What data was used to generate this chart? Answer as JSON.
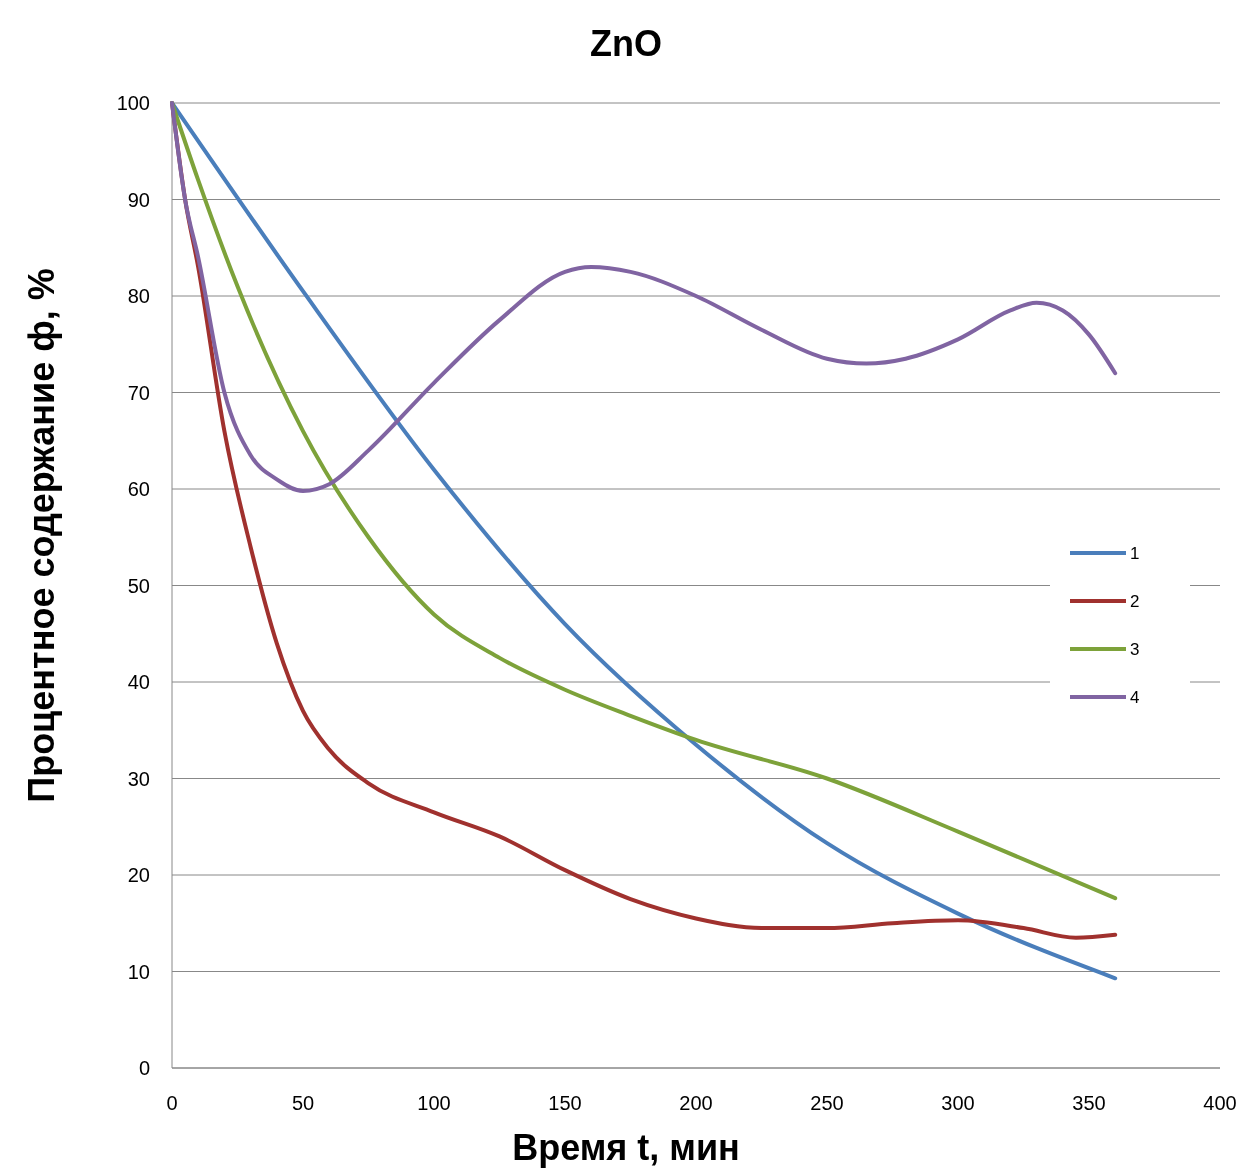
{
  "chart_data": {
    "type": "line",
    "title": "ZnO",
    "xlabel": "Время t, мин",
    "ylabel": "Процентное содержание ф, %",
    "xlim": [
      0,
      400
    ],
    "xticks": [
      0,
      50,
      100,
      150,
      200,
      250,
      300,
      350,
      400
    ],
    "ylim": [
      0,
      100
    ],
    "yticks": [
      0,
      10,
      20,
      30,
      40,
      50,
      60,
      70,
      80,
      90,
      100
    ],
    "grid": "y",
    "legend": "right",
    "marker": "none",
    "line_style": "solid",
    "series": [
      {
        "name": "1",
        "color": "#4a7ebb",
        "x": [
          0,
          50,
          100,
          150,
          200,
          250,
          300,
          360
        ],
        "values": [
          100,
          80.5,
          62,
          46,
          33.5,
          23.3,
          16,
          9.3
        ]
      },
      {
        "name": "2",
        "color": "#a0312e",
        "x": [
          0,
          5,
          10,
          20,
          30,
          40,
          50,
          60,
          75,
          100,
          125,
          150,
          175,
          200,
          225,
          250,
          275,
          300,
          325,
          345,
          360
        ],
        "values": [
          100,
          90,
          83,
          66,
          54,
          44,
          37,
          33,
          29.5,
          26.5,
          24,
          20.5,
          17.5,
          15.5,
          14.5,
          14.5,
          15,
          15.3,
          14.5,
          13.5,
          13.8
        ]
      },
      {
        "name": "3",
        "color": "#7da23a",
        "x": [
          0,
          10,
          25,
          50,
          75,
          100,
          125,
          150,
          175,
          200,
          250,
          300,
          360
        ],
        "values": [
          100,
          92,
          81,
          66,
          55,
          47,
          42.5,
          39.2,
          36.5,
          34,
          30,
          24.5,
          17.6
        ]
      },
      {
        "name": "4",
        "color": "#8064a2",
        "x": [
          0,
          5,
          10,
          20,
          30,
          40,
          50,
          60,
          75,
          100,
          125,
          150,
          160,
          175,
          200,
          225,
          250,
          265,
          280,
          300,
          320,
          330,
          340,
          350,
          360
        ],
        "values": [
          100,
          90,
          84,
          70,
          63.5,
          61,
          59.8,
          60.5,
          64,
          71,
          77.5,
          82.5,
          83,
          82.5,
          80,
          76.5,
          73.5,
          73,
          73.5,
          75.5,
          78.5,
          79.3,
          78.5,
          76,
          72
        ]
      }
    ]
  }
}
